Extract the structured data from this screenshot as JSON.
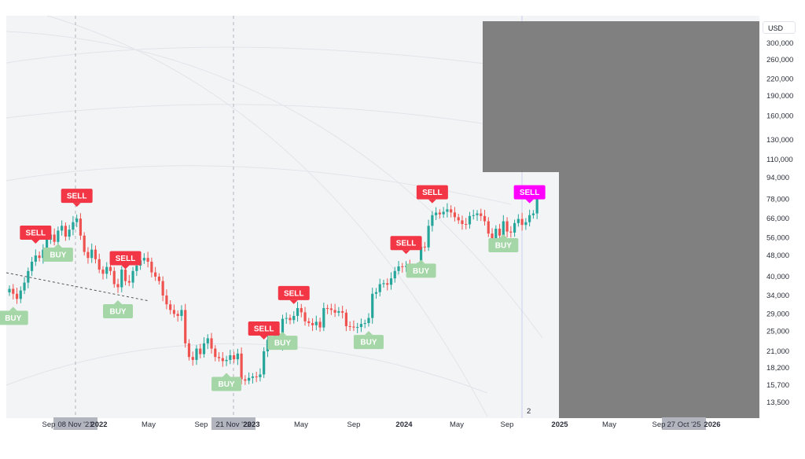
{
  "currency_label": "USD",
  "pane_number": "2",
  "chart_data": {
    "type": "candlestick",
    "y_scale": "log",
    "ylim": [
      11800,
      380000
    ],
    "y_ticks": [
      "300,000",
      "260,000",
      "220,000",
      "190,000",
      "160,000",
      "130,000",
      "110,000",
      "94,000",
      "78,000",
      "66,000",
      "56,000",
      "48,000",
      "40,000",
      "34,000",
      "29,000",
      "25,000",
      "21,000",
      "18,200",
      "15,700",
      "13,500"
    ],
    "x_ticks": [
      {
        "label": "Sep",
        "bold": false
      },
      {
        "label": "2022",
        "bold": true
      },
      {
        "label": "May",
        "bold": false
      },
      {
        "label": "Sep",
        "bold": false
      },
      {
        "label": "2023",
        "bold": true
      },
      {
        "label": "May",
        "bold": false
      },
      {
        "label": "Sep",
        "bold": false
      },
      {
        "label": "2024",
        "bold": true
      },
      {
        "label": "May",
        "bold": false
      },
      {
        "label": "Sep",
        "bold": false
      },
      {
        "label": "2025",
        "bold": true
      },
      {
        "label": "May",
        "bold": false
      },
      {
        "label": "Sep",
        "bold": false
      },
      {
        "label": "2026",
        "bold": true
      }
    ],
    "crosshair_date_labels": [
      "08 Nov '21",
      "21 Nov '22",
      "27 Oct '25"
    ],
    "candles_weekly_close": [
      36000,
      34500,
      33000,
      35500,
      38000,
      42000,
      45500,
      48000,
      47000,
      50500,
      55000,
      57500,
      54000,
      59500,
      62000,
      56500,
      60000,
      64000,
      66000,
      57000,
      49500,
      47000,
      50500,
      46500,
      42500,
      41000,
      43500,
      42000,
      37500,
      36500,
      42500,
      38500,
      38000,
      42000,
      44000,
      46000,
      47000,
      45500,
      41500,
      40000,
      38500,
      34000,
      31500,
      30000,
      29000,
      28500,
      30000,
      22500,
      20000,
      19500,
      21500,
      20500,
      22500,
      23500,
      21500,
      20000,
      19800,
      19300,
      19500,
      20300,
      19600,
      20600,
      16500,
      16300,
      16700,
      16900,
      16800,
      17200,
      21000,
      23200,
      22800,
      24500,
      22200,
      27800,
      28000,
      27500,
      28500,
      30500,
      29400,
      27200,
      26800,
      26300,
      27100,
      25800,
      30500,
      30400,
      30000,
      29300,
      29700,
      29300,
      26100,
      26000,
      25800,
      25900,
      26600,
      26800,
      28000,
      34500,
      35000,
      37500,
      37800,
      37300,
      39400,
      42000,
      43700,
      43500,
      43900,
      42200,
      41700,
      43000,
      51800,
      51500,
      62000,
      68000,
      69500,
      68500,
      70000,
      71500,
      69600,
      66800,
      65000,
      63000,
      62800,
      67500,
      68000,
      69000,
      67500,
      64500,
      58000,
      55000,
      60500,
      57000,
      64500,
      59000,
      58500,
      63500,
      65800,
      62500,
      64000,
      68000,
      69000,
      80500
    ],
    "signals": [
      {
        "label": "BUY",
        "type": "buy",
        "at": 1
      },
      {
        "label": "SELL",
        "type": "sell",
        "at": 7
      },
      {
        "label": "BUY",
        "type": "buy",
        "at": 13
      },
      {
        "label": "SELL",
        "type": "sell",
        "at": 18
      },
      {
        "label": "SELL",
        "type": "sell",
        "at": 31
      },
      {
        "label": "BUY",
        "type": "buy",
        "at": 29
      },
      {
        "label": "BUY",
        "type": "buy",
        "at": 58
      },
      {
        "label": "SELL",
        "type": "sell",
        "at": 68
      },
      {
        "label": "BUY",
        "type": "buy",
        "at": 73
      },
      {
        "label": "SELL",
        "type": "sell",
        "at": 76
      },
      {
        "label": "BUY",
        "type": "buy",
        "at": 96
      },
      {
        "label": "SELL",
        "type": "sell",
        "at": 106
      },
      {
        "label": "BUY",
        "type": "buy",
        "at": 110
      },
      {
        "label": "SELL",
        "type": "sell",
        "at": 113
      },
      {
        "label": "BUY",
        "type": "buy",
        "at": 132
      },
      {
        "label": "SELL",
        "type": "sell",
        "at": 139
      }
    ],
    "colors": {
      "up": "#26a69a",
      "down": "#ef5350",
      "sell": "#f23645",
      "buy": "#a5d6a7",
      "last_sell": "#ff00ff",
      "plot_bg": "#f3f4f6",
      "overlay": "#808080"
    }
  }
}
